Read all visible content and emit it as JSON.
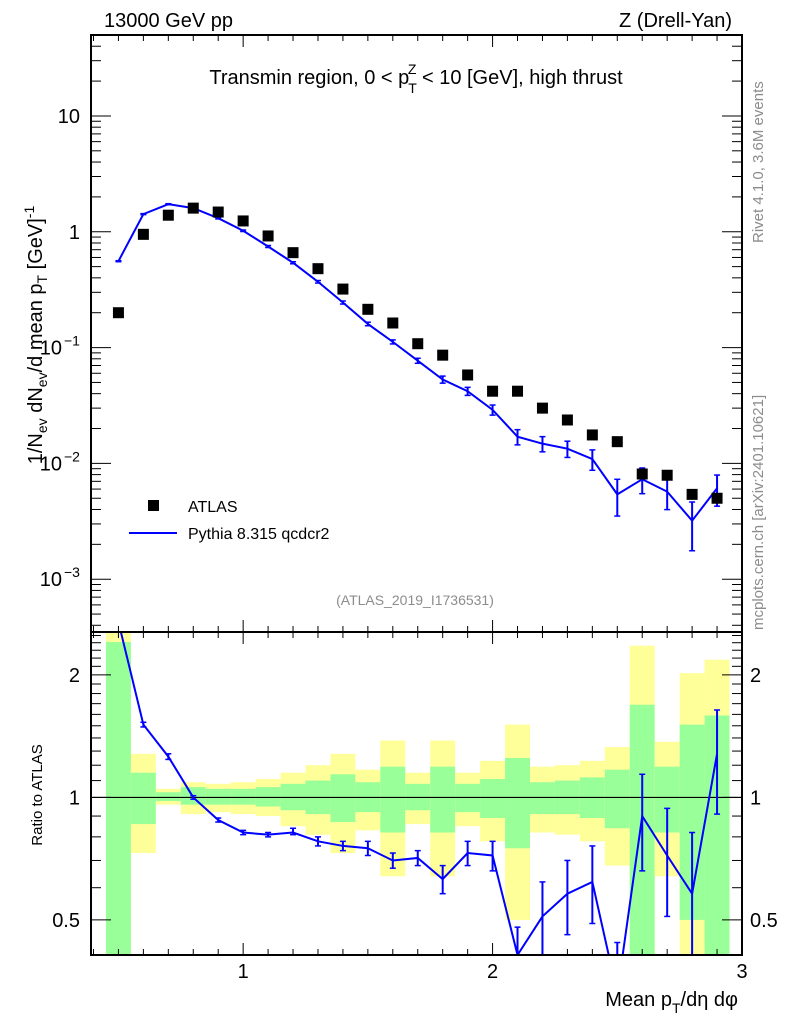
{
  "header": {
    "left": "13000 GeV pp",
    "right": "Z (Drell-Yan)"
  },
  "side_labels": {
    "rivet": "Rivet 4.1.0,  3.6M events",
    "mcplots": "mcplots.cern.ch [arXiv:2401.10621]"
  },
  "colors": {
    "data": "#000000",
    "mc": "#0000ff",
    "band_stat": "#99ff99",
    "band_total": "#ffff99"
  },
  "chart_data": [
    {
      "type": "scatter",
      "panel": "main",
      "title": "Transmin region, 0 < p_T^Z < 10 [GeV], high thrust",
      "title_parts": {
        "pre": "Transmin region, 0 < p",
        "sub": "T",
        "sup": "Z",
        "post": " < 10 [GeV], high thrust"
      },
      "ylabel": "1/N_ev dN_ev/d mean p_T [GeV]^-1",
      "ylabel_parts": {
        "a": "1/N",
        "a_sub": "ev",
        "b": " dN",
        "b_sub": "ev",
        "c": "/d mean p",
        "c_sub": "T",
        "d": " [GeV]",
        "d_sup": "-1"
      },
      "yscale": "log",
      "ylim": [
        0.00035,
        50
      ],
      "xlim": [
        0.39,
        3.0
      ],
      "yticks": [
        {
          "value": 10,
          "label": "10",
          "exp": ""
        },
        {
          "value": 1,
          "label": "1",
          "exp": ""
        },
        {
          "value": 0.1,
          "label": "10",
          "exp": "−1"
        },
        {
          "value": 0.01,
          "label": "10",
          "exp": "−2"
        },
        {
          "value": 0.001,
          "label": "10",
          "exp": "−3"
        }
      ],
      "watermark": "(ATLAS_2019_I1736531)",
      "legend": {
        "placement": "lower-left",
        "entries": [
          {
            "label": "ATLAS",
            "style": "marker"
          },
          {
            "label": "Pythia 8.315 qcdcr2",
            "style": "line"
          }
        ]
      },
      "x": [
        0.5,
        0.6,
        0.7,
        0.8,
        0.9,
        1.0,
        1.1,
        1.2,
        1.3,
        1.4,
        1.5,
        1.6,
        1.7,
        1.8,
        1.9,
        2.0,
        2.1,
        2.2,
        2.3,
        2.4,
        2.5,
        2.6,
        2.7,
        2.8,
        2.9
      ],
      "series": [
        {
          "name": "ATLAS",
          "values": [
            0.2,
            0.95,
            1.39,
            1.6,
            1.48,
            1.24,
            0.92,
            0.66,
            0.48,
            0.32,
            0.214,
            0.163,
            0.108,
            0.086,
            0.058,
            0.042,
            0.042,
            0.03,
            0.0237,
            0.0176,
            0.0154,
            0.0081,
            0.0079,
            0.0054,
            0.005
          ]
        },
        {
          "name": "Pythia 8.315 qcdcr2",
          "values": [
            0.557,
            1.42,
            1.73,
            1.6,
            1.31,
            1.02,
            0.746,
            0.54,
            0.37,
            0.245,
            0.16,
            0.112,
            0.077,
            0.053,
            0.042,
            0.029,
            0.017,
            0.0148,
            0.0134,
            0.0109,
            0.0054,
            0.0073,
            0.0057,
            0.0032,
            0.0061
          ],
          "rel_err": [
            0.01,
            0.01,
            0.01,
            0.01,
            0.015,
            0.015,
            0.02,
            0.02,
            0.025,
            0.03,
            0.035,
            0.04,
            0.05,
            0.07,
            0.08,
            0.1,
            0.15,
            0.15,
            0.16,
            0.2,
            0.35,
            0.25,
            0.3,
            0.45,
            0.3
          ]
        }
      ]
    },
    {
      "type": "line",
      "panel": "ratio",
      "xlabel": "Mean p_T/dη dφ",
      "xlabel_parts": {
        "pre": "Mean p",
        "sub": "T",
        "post": "/dη dφ"
      },
      "ylabel": "Ratio to ATLAS",
      "yscale": "log",
      "ylim": [
        0.41,
        2.55
      ],
      "xlim": [
        0.39,
        3.0
      ],
      "xticks": [
        {
          "value": 1,
          "label": "1"
        },
        {
          "value": 2,
          "label": "2"
        },
        {
          "value": 3,
          "label": "3"
        }
      ],
      "yticks": [
        {
          "value": 0.5,
          "label": "0.5"
        },
        {
          "value": 1,
          "label": "1"
        },
        {
          "value": 2,
          "label": "2"
        }
      ],
      "reference_line": 1,
      "x": [
        0.5,
        0.6,
        0.7,
        0.8,
        0.9,
        1.0,
        1.1,
        1.2,
        1.3,
        1.4,
        1.5,
        1.6,
        1.7,
        1.8,
        1.9,
        2.0,
        2.1,
        2.2,
        2.3,
        2.4,
        2.5,
        2.6,
        2.7,
        2.8,
        2.9
      ],
      "bin_width": 0.1,
      "bands": {
        "total_up": [
          2.6,
          1.28,
          1.05,
          1.09,
          1.08,
          1.09,
          1.11,
          1.15,
          1.2,
          1.28,
          1.17,
          1.38,
          1.15,
          1.38,
          1.15,
          1.23,
          1.51,
          1.19,
          1.2,
          1.23,
          1.33,
          2.36,
          1.37,
          2.02,
          2.18
        ],
        "stat_up": [
          2.41,
          1.15,
          1.03,
          1.06,
          1.05,
          1.05,
          1.06,
          1.08,
          1.1,
          1.14,
          1.09,
          1.19,
          1.08,
          1.19,
          1.08,
          1.11,
          1.25,
          1.09,
          1.1,
          1.12,
          1.17,
          1.69,
          1.19,
          1.51,
          1.59
        ],
        "stat_down": [
          0.4,
          0.86,
          0.98,
          0.96,
          0.96,
          0.96,
          0.95,
          0.93,
          0.91,
          0.87,
          0.92,
          0.82,
          0.93,
          0.82,
          0.92,
          0.89,
          0.75,
          0.91,
          0.91,
          0.89,
          0.84,
          0.4,
          0.82,
          0.5,
          0.41
        ],
        "total_down": [
          0.4,
          0.73,
          0.96,
          0.91,
          0.92,
          0.91,
          0.9,
          0.85,
          0.81,
          0.73,
          0.83,
          0.64,
          0.86,
          0.64,
          0.85,
          0.78,
          0.5,
          0.82,
          0.81,
          0.78,
          0.68,
          0.4,
          0.64,
          0.4,
          0.4
        ]
      },
      "series": [
        {
          "name": "Pythia 8.315 qcdcr2 / ATLAS",
          "values": [
            2.7,
            1.51,
            1.26,
            1.0,
            0.88,
            0.82,
            0.81,
            0.82,
            0.78,
            0.76,
            0.75,
            0.7,
            0.71,
            0.63,
            0.73,
            0.72,
            0.41,
            0.51,
            0.58,
            0.62,
            0.33,
            0.9,
            0.72,
            0.58,
            1.28
          ],
          "err_low": [
            2.65,
            1.49,
            1.24,
            0.99,
            0.87,
            0.81,
            0.8,
            0.81,
            0.76,
            0.74,
            0.72,
            0.67,
            0.68,
            0.58,
            0.68,
            0.66,
            0.36,
            0.41,
            0.46,
            0.49,
            0.25,
            0.66,
            0.51,
            0.35,
            0.91
          ],
          "err_high": [
            2.75,
            1.53,
            1.28,
            1.01,
            0.89,
            0.83,
            0.82,
            0.84,
            0.8,
            0.78,
            0.78,
            0.73,
            0.74,
            0.68,
            0.78,
            0.78,
            0.48,
            0.62,
            0.7,
            0.76,
            0.44,
            1.14,
            0.94,
            0.82,
            1.64
          ]
        }
      ]
    }
  ]
}
